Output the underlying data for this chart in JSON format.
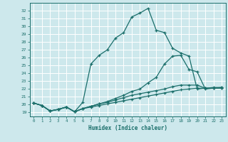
{
  "xlabel": "Humidex (Indice chaleur)",
  "bg_color": "#cde8ec",
  "grid_color": "#ffffff",
  "line_color": "#1a6e6a",
  "xlim": [
    -0.5,
    23.5
  ],
  "ylim": [
    18.5,
    33.0
  ],
  "yticks": [
    19,
    20,
    21,
    22,
    23,
    24,
    25,
    26,
    27,
    28,
    29,
    30,
    31,
    32
  ],
  "xticks": [
    0,
    1,
    2,
    3,
    4,
    5,
    6,
    7,
    8,
    9,
    10,
    11,
    12,
    13,
    14,
    15,
    16,
    17,
    18,
    19,
    20,
    21,
    22,
    23
  ],
  "lines": [
    {
      "x": [
        0,
        1,
        2,
        3,
        4,
        5,
        6,
        7,
        8,
        9,
        10,
        11,
        12,
        13,
        14,
        15,
        16,
        17,
        18,
        19,
        20,
        21,
        22,
        23
      ],
      "y": [
        20.2,
        19.9,
        19.2,
        19.4,
        19.7,
        19.1,
        20.3,
        25.2,
        26.3,
        27.0,
        28.5,
        29.2,
        31.2,
        31.7,
        32.3,
        29.5,
        29.2,
        27.2,
        26.6,
        26.2,
        22.0,
        22.1,
        22.2,
        22.2
      ]
    },
    {
      "x": [
        0,
        1,
        2,
        3,
        4,
        5,
        6,
        7,
        8,
        9,
        10,
        11,
        12,
        13,
        14,
        15,
        16,
        17,
        18,
        19,
        20,
        21,
        22,
        23
      ],
      "y": [
        20.2,
        19.9,
        19.2,
        19.4,
        19.7,
        19.1,
        19.5,
        19.8,
        20.1,
        20.4,
        20.8,
        21.2,
        21.7,
        22.0,
        22.8,
        23.5,
        25.2,
        26.2,
        26.3,
        24.5,
        24.2,
        22.0,
        22.1,
        22.2
      ]
    },
    {
      "x": [
        0,
        1,
        2,
        3,
        4,
        5,
        6,
        7,
        8,
        9,
        10,
        11,
        12,
        13,
        14,
        15,
        16,
        17,
        18,
        19,
        20,
        21,
        22,
        23
      ],
      "y": [
        20.2,
        19.9,
        19.2,
        19.4,
        19.7,
        19.1,
        19.5,
        19.8,
        20.1,
        20.3,
        20.6,
        20.9,
        21.2,
        21.4,
        21.6,
        21.8,
        22.0,
        22.3,
        22.5,
        22.5,
        22.5,
        22.1,
        22.1,
        22.1
      ]
    },
    {
      "x": [
        0,
        1,
        2,
        3,
        4,
        5,
        6,
        7,
        8,
        9,
        10,
        11,
        12,
        13,
        14,
        15,
        16,
        17,
        18,
        19,
        20,
        21,
        22,
        23
      ],
      "y": [
        20.2,
        19.9,
        19.2,
        19.4,
        19.7,
        19.1,
        19.5,
        19.7,
        19.9,
        20.1,
        20.3,
        20.5,
        20.7,
        20.9,
        21.1,
        21.3,
        21.5,
        21.7,
        21.9,
        22.0,
        22.1,
        22.1,
        22.1,
        22.1
      ]
    }
  ]
}
